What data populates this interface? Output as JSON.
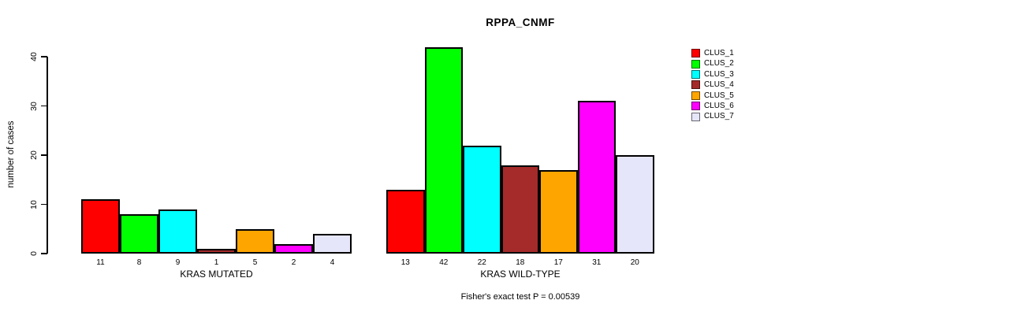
{
  "title": "RPPA_CNMF",
  "footer": "Fisher's exact test P = 0.00539",
  "legend": {
    "items": [
      {
        "label": "CLUS_1",
        "color": "#FF0000"
      },
      {
        "label": "CLUS_2",
        "color": "#00FF00"
      },
      {
        "label": "CLUS_3",
        "color": "#00FFFF"
      },
      {
        "label": "CLUS_4",
        "color": "#A52A2A"
      },
      {
        "label": "CLUS_5",
        "color": "#FFA500"
      },
      {
        "label": "CLUS_6",
        "color": "#FF00FF"
      },
      {
        "label": "CLUS_7",
        "color": "#E6E6FA"
      }
    ]
  },
  "chart_data": {
    "type": "bar",
    "title": "RPPA_CNMF",
    "xlabel": "",
    "ylabel": "number of cases",
    "ylim": [
      0,
      42
    ],
    "yticks": [
      0,
      10,
      20,
      30,
      40
    ],
    "grid": false,
    "legend_position": "right",
    "series_names": [
      "CLUS_1",
      "CLUS_2",
      "CLUS_3",
      "CLUS_4",
      "CLUS_5",
      "CLUS_6",
      "CLUS_7"
    ],
    "series_colors": [
      "#FF0000",
      "#00FF00",
      "#00FFFF",
      "#A52A2A",
      "#FFA500",
      "#FF00FF",
      "#E6E6FA"
    ],
    "groups": [
      {
        "label": "KRAS MUTATED",
        "values": [
          11,
          8,
          9,
          1,
          5,
          2,
          4
        ]
      },
      {
        "label": "KRAS WILD-TYPE",
        "values": [
          13,
          42,
          22,
          18,
          17,
          31,
          20
        ]
      }
    ],
    "annotation": "Fisher's exact test P = 0.00539"
  }
}
